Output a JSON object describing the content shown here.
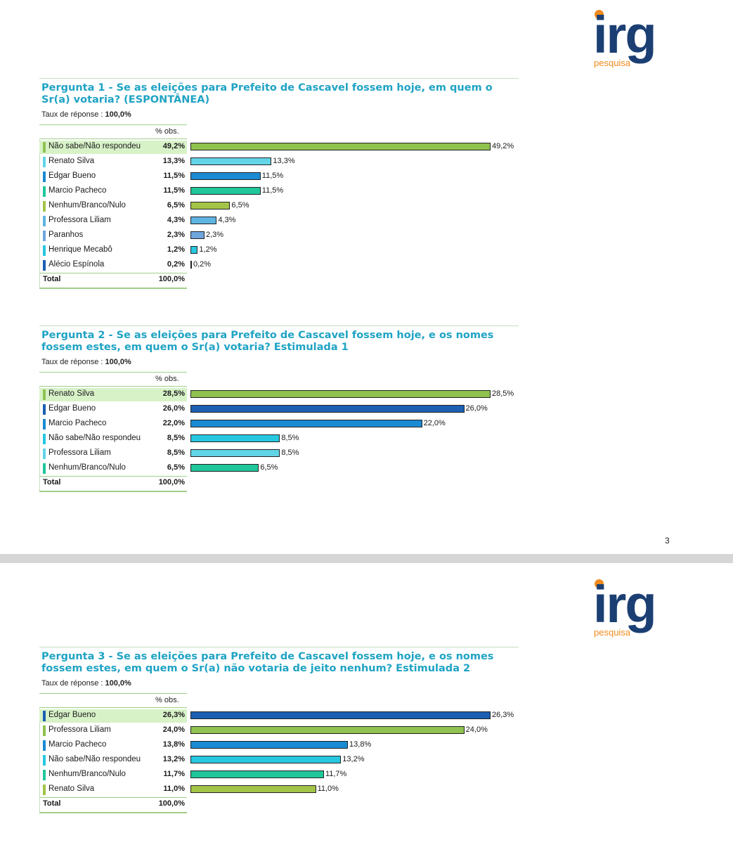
{
  "logo": {
    "brand": "irg",
    "sub": "pesquisa"
  },
  "page_number": "3",
  "colors": {
    "green": "#8fc24f",
    "cyan": "#62d4e8",
    "blue": "#1a8ad3",
    "teal": "#1fc79a",
    "olive": "#a3c447",
    "lightblue": "#5fb3e0",
    "steel": "#6ea6dd",
    "aqua": "#27c7df",
    "navy": "#1b5fb3",
    "title": "#1fa3c4"
  },
  "chart_data": [
    {
      "type": "bar",
      "title": "Pergunta 1 - Se as eleições para Prefeito de Cascavel fossem hoje, em quem o Sr(a) votaria? (ESPONTÂNEA)",
      "rate_label": "Taux de réponse :",
      "rate_value": "100,0%",
      "col_header": "% obs.",
      "total_label": "Total",
      "total_value": "100,0%",
      "max": 49.2,
      "rows": [
        {
          "label": "Não sabe/Não respondeu",
          "value": 49.2,
          "text": "49,2%",
          "color": "#8fc24f"
        },
        {
          "label": "Renato Silva",
          "value": 13.3,
          "text": "13,3%",
          "color": "#62d4e8"
        },
        {
          "label": "Edgar Bueno",
          "value": 11.5,
          "text": "11,5%",
          "color": "#1a8ad3"
        },
        {
          "label": "Marcio Pacheco",
          "value": 11.5,
          "text": "11,5%",
          "color": "#1fc79a"
        },
        {
          "label": "Nenhum/Branco/Nulo",
          "value": 6.5,
          "text": "6,5%",
          "color": "#a3c447"
        },
        {
          "label": "Professora Liliam",
          "value": 4.3,
          "text": "4,3%",
          "color": "#5fb3e0"
        },
        {
          "label": "Paranhos",
          "value": 2.3,
          "text": "2,3%",
          "color": "#6ea6dd"
        },
        {
          "label": "Henrique Mecabô",
          "value": 1.2,
          "text": "1,2%",
          "color": "#27c7df"
        },
        {
          "label": "Alécio Espínola",
          "value": 0.2,
          "text": "0,2%",
          "color": "#1b5fb3"
        }
      ]
    },
    {
      "type": "bar",
      "title": "Pergunta 2 - Se as eleições para Prefeito de Cascavel fossem hoje, e os nomes fossem estes, em quem o Sr(a) votaria? Estimulada 1",
      "rate_label": "Taux de réponse :",
      "rate_value": "100,0%",
      "col_header": "% obs.",
      "total_label": "Total",
      "total_value": "100,0%",
      "max": 28.5,
      "rows": [
        {
          "label": "Renato Silva",
          "value": 28.5,
          "text": "28,5%",
          "color": "#8fc24f"
        },
        {
          "label": "Edgar Bueno",
          "value": 26.0,
          "text": "26,0%",
          "color": "#1b5fb3"
        },
        {
          "label": "Marcio Pacheco",
          "value": 22.0,
          "text": "22,0%",
          "color": "#1a8ad3"
        },
        {
          "label": "Não sabe/Não respondeu",
          "value": 8.5,
          "text": "8,5%",
          "color": "#27c7df"
        },
        {
          "label": "Professora Liliam",
          "value": 8.5,
          "text": "8,5%",
          "color": "#62d4e8"
        },
        {
          "label": "Nenhum/Branco/Nulo",
          "value": 6.5,
          "text": "6,5%",
          "color": "#1fc79a"
        }
      ]
    },
    {
      "type": "bar",
      "title": "Pergunta 3 - Se as eleições para Prefeito de Cascavel fossem hoje, e os nomes fossem estes, em quem o Sr(a) não votaria de jeito nenhum? Estimulada 2",
      "rate_label": "Taux de réponse :",
      "rate_value": "100,0%",
      "col_header": "% obs.",
      "total_label": "Total",
      "total_value": "100,0%",
      "max": 26.3,
      "rows": [
        {
          "label": "Edgar Bueno",
          "value": 26.3,
          "text": "26,3%",
          "color": "#1b5fb3"
        },
        {
          "label": "Professora Liliam",
          "value": 24.0,
          "text": "24,0%",
          "color": "#8fc24f"
        },
        {
          "label": "Marcio Pacheco",
          "value": 13.8,
          "text": "13,8%",
          "color": "#1a8ad3"
        },
        {
          "label": "Não sabe/Não respondeu",
          "value": 13.2,
          "text": "13,2%",
          "color": "#27c7df"
        },
        {
          "label": "Nenhum/Branco/Nulo",
          "value": 11.7,
          "text": "11,7%",
          "color": "#1fc79a"
        },
        {
          "label": "Renato Silva",
          "value": 11.0,
          "text": "11,0%",
          "color": "#a3c447"
        }
      ]
    }
  ]
}
